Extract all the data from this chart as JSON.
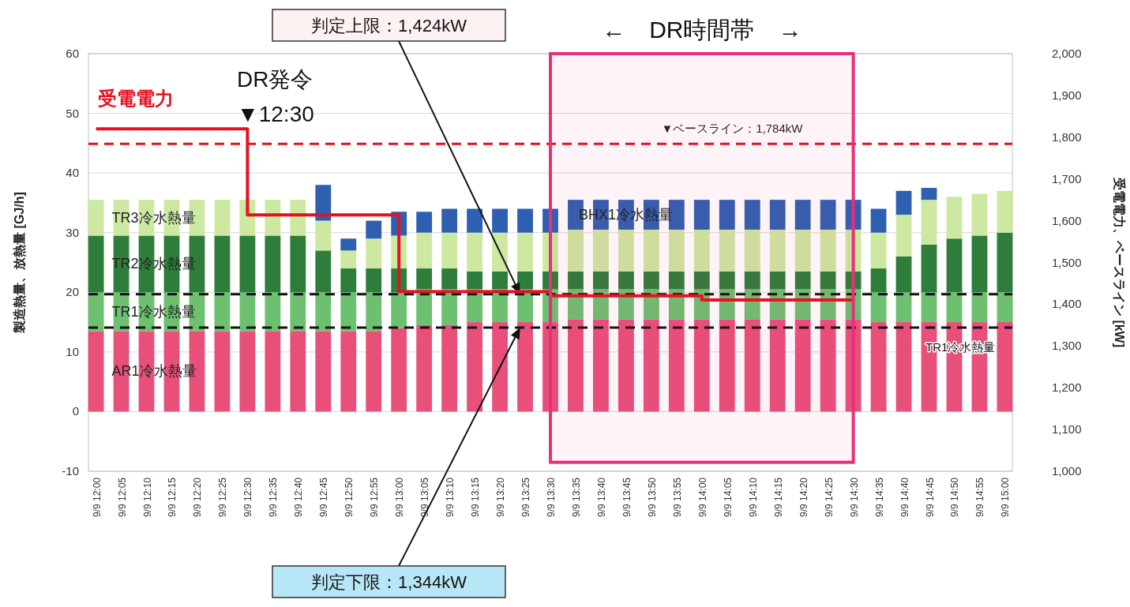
{
  "chart_data": {
    "type": "bar",
    "stacked": true,
    "grid": "y",
    "ylabel": "製造熱量、放熱量 [GJ/h]",
    "y2label": "受電電力、ベースライン [kW]",
    "categories": [
      "9/9 12:00",
      "9/9 12:05",
      "9/9 12:10",
      "9/9 12:15",
      "9/9 12:20",
      "9/9 12:25",
      "9/9 12:30",
      "9/9 12:35",
      "9/9 12:40",
      "9/9 12:45",
      "9/9 12:50",
      "9/9 12:55",
      "9/9 13:00",
      "9/9 13:05",
      "9/9 13:10",
      "9/9 13:15",
      "9/9 13:20",
      "9/9 13:25",
      "9/9 13:30",
      "9/9 13:35",
      "9/9 13:40",
      "9/9 13:45",
      "9/9 13:50",
      "9/9 13:55",
      "9/9 14:00",
      "9/9 14:05",
      "9/9 14:10",
      "9/9 14:15",
      "9/9 14:20",
      "9/9 14:25",
      "9/9 14:30",
      "9/9 14:35",
      "9/9 14:40",
      "9/9 14:45",
      "9/9 14:50",
      "9/9 14:55",
      "9/9 15:00"
    ],
    "ylim": [
      -10,
      60
    ],
    "yticks": [
      -10,
      0,
      10,
      20,
      30,
      40,
      50,
      60
    ],
    "y2lim": [
      1000,
      2000
    ],
    "y2ticks": [
      {
        "value": 1000,
        "label": "1,000"
      },
      {
        "value": 1100,
        "label": "1,100"
      },
      {
        "value": 1200,
        "label": "1,200"
      },
      {
        "value": 1300,
        "label": "1,300"
      },
      {
        "value": 1400,
        "label": "1,400"
      },
      {
        "value": 1500,
        "label": "1,500"
      },
      {
        "value": 1600,
        "label": "1,600"
      },
      {
        "value": 1700,
        "label": "1,700"
      },
      {
        "value": 1800,
        "label": "1,800"
      },
      {
        "value": 1900,
        "label": "1,900"
      },
      {
        "value": 2000,
        "label": "2,000"
      }
    ],
    "series": [
      {
        "name": "AR1冷水熱量",
        "color": "#e8507a",
        "values": [
          13.5,
          13.5,
          13.5,
          13.5,
          13.5,
          13.5,
          13.5,
          13.5,
          13.5,
          13.5,
          13.5,
          13.5,
          14,
          14.5,
          14.5,
          15,
          15,
          15,
          15,
          15.5,
          15.5,
          15.5,
          15.5,
          15.5,
          15.5,
          15.5,
          15.5,
          15.5,
          15.5,
          15.5,
          15.5,
          15,
          15,
          15,
          15,
          15,
          15
        ]
      },
      {
        "name": "TR1冷水熱量",
        "color": "#6cc070",
        "values": [
          6.5,
          6.5,
          6.5,
          6.5,
          6.5,
          6.5,
          6.5,
          6.5,
          6.5,
          6.5,
          6.5,
          6.5,
          6,
          6,
          6,
          5.5,
          5.5,
          5.5,
          5.5,
          5,
          5,
          5,
          5,
          5,
          5,
          5,
          5,
          5,
          5,
          5,
          5,
          5,
          5,
          5,
          5,
          5,
          5
        ]
      },
      {
        "name": "TR2冷水熱量",
        "color": "#2e7d3a",
        "values": [
          9.5,
          9.5,
          9.5,
          9.5,
          9.5,
          9.5,
          9.5,
          9.5,
          9.5,
          7,
          4,
          4,
          4,
          3.5,
          3.5,
          3,
          3,
          3,
          3,
          3,
          3,
          3,
          3,
          3,
          3,
          3,
          3,
          3,
          3,
          3,
          3,
          4,
          6,
          8,
          9,
          9.5,
          10
        ]
      },
      {
        "name": "TR3冷水熱量",
        "color": "#cde8a0",
        "values": [
          6,
          6,
          6,
          6,
          6,
          6,
          6,
          6,
          6,
          5,
          3,
          5,
          5.5,
          6,
          6,
          6.5,
          6.5,
          6.5,
          6.5,
          7,
          7,
          7,
          7,
          7,
          7,
          7,
          7,
          7,
          7,
          7,
          7,
          6,
          7,
          7.5,
          7,
          7,
          7
        ]
      },
      {
        "name": "BHX1冷水熱量",
        "color": "#2f5fb0",
        "values": [
          0,
          0,
          0,
          0,
          0,
          0,
          0,
          0,
          0,
          6,
          2,
          3,
          4,
          3.5,
          4,
          4,
          4,
          4,
          4,
          5,
          5,
          5,
          5,
          5,
          5,
          5,
          5,
          5,
          5,
          5,
          5,
          4,
          4,
          2,
          0,
          0,
          0
        ]
      },
      {
        "name": "受電電力",
        "type": "step",
        "axis": "y2",
        "line_style": "solid",
        "color": "#e8101e",
        "values": [
          1820,
          1820,
          1820,
          1820,
          1820,
          1820,
          1614,
          1614,
          1614,
          1614,
          1614,
          1614,
          1430,
          1430,
          1430,
          1430,
          1430,
          1430,
          1420,
          1420,
          1420,
          1420,
          1420,
          1420,
          1410,
          1410,
          1410,
          1410,
          1410,
          1410,
          1410,
          null,
          null,
          null,
          null,
          null,
          null
        ]
      }
    ],
    "ref_lines": [
      {
        "axis": "y2",
        "value": 1784,
        "label": "▼ベースライン：1,784kW",
        "color": "#e8101e",
        "line_style": "dashed"
      },
      {
        "axis": "y2",
        "value": 1424,
        "label": "判定上限：1,424kW",
        "color": "#111111",
        "line_style": "dashed"
      },
      {
        "axis": "y2",
        "value": 1344,
        "label": "判定下限：1,344kW",
        "color": "#111111",
        "line_style": "dashed"
      }
    ],
    "bands": [
      {
        "axis": "x",
        "from": "9/9 13:30",
        "to": "9/9 14:30",
        "label": "←　DR時間帯　→",
        "color": "#e6307a"
      }
    ],
    "annotations": [
      "DR発令\n▼12:30",
      "TR1冷水熱量"
    ]
  }
}
